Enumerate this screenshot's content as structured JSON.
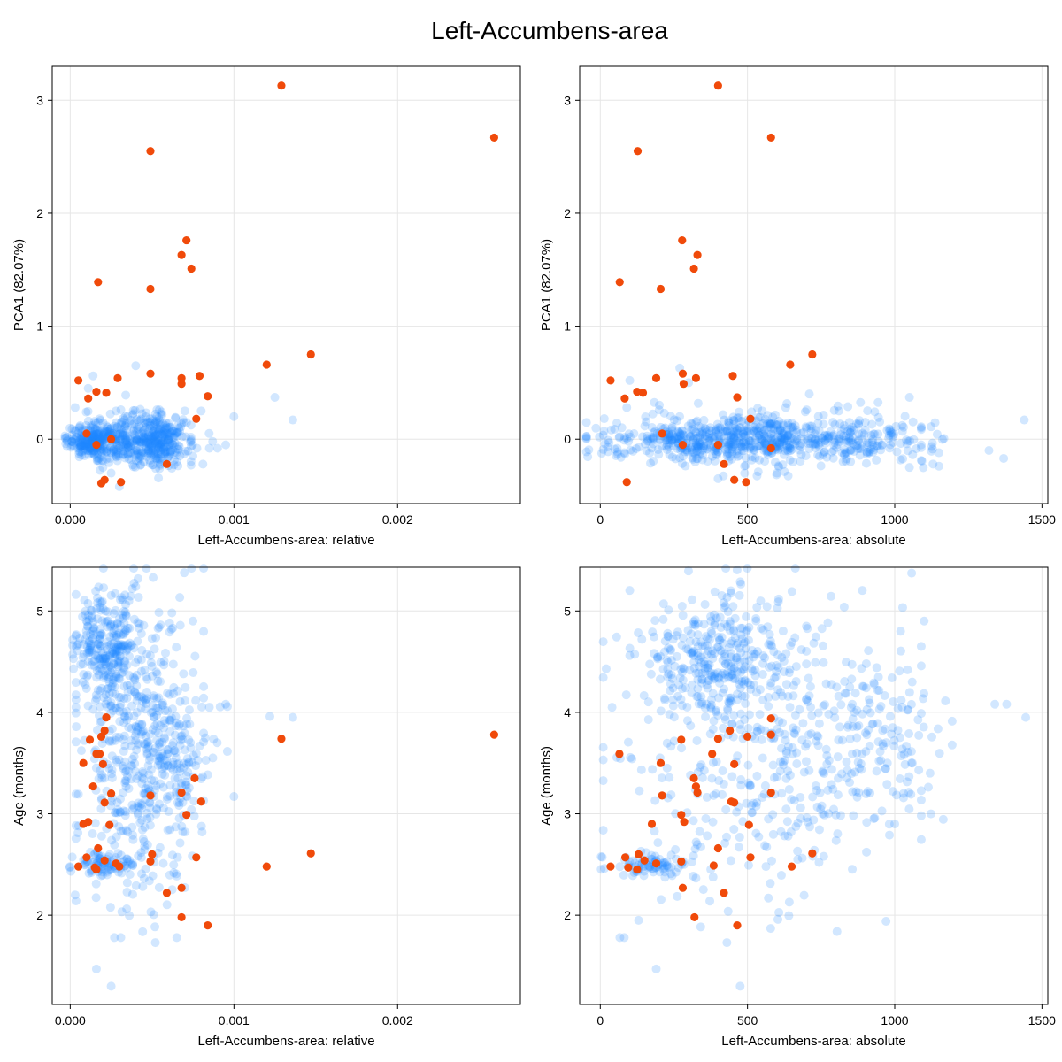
{
  "title": "Left-Accumbens-area",
  "colors": {
    "background_points": "#1e88ff",
    "highlight_points": "#f04a0a"
  },
  "chart_data": [
    {
      "type": "scatter",
      "xlabel": "Left-Accumbens-area: relative",
      "ylabel": "PCA1 (82.07%)",
      "xlim": [
        -0.00011,
        0.00275
      ],
      "ylim": [
        -0.57,
        3.3
      ],
      "xticks": [
        0,
        0.001,
        0.002
      ],
      "xtick_labels": [
        "0.000",
        "0.001",
        "0.002"
      ],
      "yticks": [
        0,
        1,
        2,
        3
      ],
      "ytick_labels": [
        "0",
        "1",
        "2",
        "3"
      ],
      "grid": true,
      "background_series": {
        "count": 900,
        "dense_points": [
          [
            1e-05,
            -0.02
          ],
          [
            3e-05,
            0.28
          ],
          [
            8e-05,
            -0.1
          ],
          [
            0.00011,
            0.45
          ],
          [
            0.00014,
            0.56
          ],
          [
            0.00018,
            0.18
          ],
          [
            0.0002,
            -0.25
          ],
          [
            0.00025,
            -0.3
          ],
          [
            0.00028,
            0.25
          ],
          [
            0.0003,
            -0.42
          ],
          [
            0.00035,
            0.2
          ],
          [
            0.0004,
            0.65
          ],
          [
            0.00045,
            -0.2
          ],
          [
            0.0005,
            0.18
          ],
          [
            0.00055,
            -0.22
          ],
          [
            0.0006,
            0.1
          ],
          [
            0.00065,
            -0.2
          ],
          [
            0.0007,
            0.25
          ],
          [
            0.00075,
            -0.15
          ],
          [
            0.0008,
            0.25
          ],
          [
            0.00085,
            -0.08
          ],
          [
            0.0009,
            -0.08
          ],
          [
            0.00095,
            -0.05
          ],
          [
            0.001,
            0.2
          ],
          [
            0.00125,
            0.37
          ],
          [
            0.00136,
            0.17
          ]
        ],
        "ranges": [
          {
            "x": [
              0.0,
              0.00032
            ],
            "y": [
              -0.15,
              0.12
            ],
            "n": 300
          },
          {
            "x": [
              0.00032,
              0.0007
            ],
            "y": [
              -0.2,
              0.2
            ],
            "n": 300
          },
          {
            "x": [
              0.0001,
              0.0008
            ],
            "y": [
              -0.3,
              0.3
            ],
            "n": 100
          }
        ]
      },
      "highlight_series": [
        [
          0.00129,
          3.13
        ],
        [
          0.00259,
          2.67
        ],
        [
          0.00049,
          2.55
        ],
        [
          0.00071,
          1.76
        ],
        [
          0.00068,
          1.63
        ],
        [
          0.00074,
          1.51
        ],
        [
          0.00017,
          1.39
        ],
        [
          0.00049,
          1.33
        ],
        [
          0.00147,
          0.75
        ],
        [
          0.0012,
          0.66
        ],
        [
          0.00049,
          0.58
        ],
        [
          0.00079,
          0.56
        ],
        [
          0.00068,
          0.54
        ],
        [
          0.00029,
          0.54
        ],
        [
          5e-05,
          0.52
        ],
        [
          0.00068,
          0.49
        ],
        [
          0.00016,
          0.42
        ],
        [
          0.00022,
          0.41
        ],
        [
          0.00011,
          0.36
        ],
        [
          0.00084,
          0.38
        ],
        [
          0.00077,
          0.18
        ],
        [
          0.00059,
          -0.22
        ],
        [
          0.00021,
          -0.36
        ],
        [
          0.00031,
          -0.38
        ],
        [
          0.00019,
          -0.39
        ],
        [
          0.0001,
          0.05
        ],
        [
          0.00016,
          -0.05
        ],
        [
          0.00025,
          0.0
        ]
      ]
    },
    {
      "type": "scatter",
      "xlabel": "Left-Accumbens-area: absolute",
      "ylabel": "PCA1 (82.07%)",
      "xlim": [
        -70,
        1520
      ],
      "ylim": [
        -0.57,
        3.3
      ],
      "xticks": [
        0,
        500,
        1000,
        1500
      ],
      "xtick_labels": [
        "0",
        "500",
        "1000",
        "1500"
      ],
      "yticks": [
        0,
        1,
        2,
        3
      ],
      "ytick_labels": [
        "0",
        "1",
        "2",
        "3"
      ],
      "grid": true,
      "background_series": {
        "count": 900,
        "dense_points": [
          [
            1050,
            0.37
          ],
          [
            1440,
            0.17
          ],
          [
            1370,
            -0.17
          ],
          [
            1320,
            -0.1
          ],
          [
            1130,
            -0.22
          ],
          [
            1150,
            -0.12
          ],
          [
            810,
            0.25
          ],
          [
            710,
            0.4
          ],
          [
            270,
            0.63
          ],
          [
            300,
            0.5
          ],
          [
            100,
            0.52
          ],
          [
            90,
            0.28
          ],
          [
            30,
            -0.03
          ],
          [
            550,
            0.25
          ],
          [
            900,
            0.15
          ],
          [
            1050,
            -0.25
          ],
          [
            850,
            -0.2
          ],
          [
            600,
            -0.3
          ],
          [
            400,
            -0.35
          ]
        ],
        "ranges": [
          {
            "x": [
              30,
              800
            ],
            "y": [
              -0.15,
              0.15
            ],
            "n": 400
          },
          {
            "x": [
              100,
              1000
            ],
            "y": [
              -0.25,
              0.25
            ],
            "n": 300
          },
          {
            "x": [
              700,
              1150
            ],
            "y": [
              -0.2,
              0.15
            ],
            "n": 100
          }
        ]
      },
      "highlight_series": [
        [
          400,
          3.13
        ],
        [
          580,
          2.67
        ],
        [
          127,
          2.55
        ],
        [
          278,
          1.76
        ],
        [
          330,
          1.63
        ],
        [
          318,
          1.51
        ],
        [
          66,
          1.39
        ],
        [
          205,
          1.33
        ],
        [
          720,
          0.75
        ],
        [
          645,
          0.66
        ],
        [
          280,
          0.58
        ],
        [
          450,
          0.56
        ],
        [
          283,
          0.49
        ],
        [
          325,
          0.54
        ],
        [
          35,
          0.52
        ],
        [
          190,
          0.54
        ],
        [
          125,
          0.42
        ],
        [
          145,
          0.41
        ],
        [
          83,
          0.36
        ],
        [
          465,
          0.37
        ],
        [
          510,
          0.18
        ],
        [
          420,
          -0.22
        ],
        [
          455,
          -0.36
        ],
        [
          495,
          -0.38
        ],
        [
          90,
          -0.38
        ],
        [
          210,
          0.05
        ],
        [
          580,
          -0.08
        ],
        [
          280,
          -0.05
        ],
        [
          400,
          -0.05
        ]
      ]
    },
    {
      "type": "scatter",
      "xlabel": "Left-Accumbens-area: relative",
      "ylabel": "Age (months)",
      "xlim": [
        -0.00011,
        0.00275
      ],
      "ylim": [
        1.12,
        5.43
      ],
      "xticks": [
        0,
        0.001,
        0.002
      ],
      "xtick_labels": [
        "0.000",
        "0.001",
        "0.002"
      ],
      "yticks": [
        2,
        3,
        4,
        5
      ],
      "ytick_labels": [
        "2",
        "3",
        "4",
        "5"
      ],
      "grid": true,
      "background_series": {
        "count": 900,
        "dense_points": [
          [
            0.00016,
            1.47
          ],
          [
            0.00025,
            1.3
          ],
          [
            0.00052,
            1.73
          ],
          [
            2e-05,
            4.43
          ],
          [
            3e-05,
            2.2
          ],
          [
            0.00095,
            4.08
          ],
          [
            0.001,
            3.17
          ],
          [
            0.00122,
            3.96
          ],
          [
            0.00136,
            3.95
          ],
          [
            0.00085,
            4.05
          ],
          [
            0.00075,
            4.9
          ],
          [
            0.00038,
            5.22
          ],
          [
            0.0004,
            5.24
          ]
        ],
        "ranges": [
          {
            "x": [
              5e-05,
              0.0004
            ],
            "y": [
              4.2,
              5.1
            ],
            "n": 250
          },
          {
            "x": [
              0.0001,
              0.00075
            ],
            "y": [
              2.2,
              5.0
            ],
            "n": 450
          },
          {
            "x": [
              3e-05,
              0.00035
            ],
            "y": [
              2.4,
              2.6
            ],
            "n": 80
          },
          {
            "x": [
              0.0003,
              0.0009
            ],
            "y": [
              3.0,
              4.2
            ],
            "n": 120
          }
        ]
      },
      "highlight_series": [
        [
          0.00259,
          3.78
        ],
        [
          0.00129,
          3.74
        ],
        [
          0.00147,
          2.61
        ],
        [
          0.0012,
          2.48
        ],
        [
          0.00022,
          3.95
        ],
        [
          0.00019,
          3.76
        ],
        [
          0.00021,
          3.82
        ],
        [
          0.00012,
          3.73
        ],
        [
          0.00016,
          3.59
        ],
        [
          0.00018,
          3.59
        ],
        [
          8e-05,
          3.5
        ],
        [
          0.0002,
          3.49
        ],
        [
          0.00076,
          3.35
        ],
        [
          0.00014,
          3.27
        ],
        [
          0.00068,
          3.21
        ],
        [
          0.00025,
          3.2
        ],
        [
          0.00049,
          3.18
        ],
        [
          0.0008,
          3.12
        ],
        [
          0.00021,
          3.11
        ],
        [
          0.00071,
          2.99
        ],
        [
          0.00011,
          2.92
        ],
        [
          8e-05,
          2.9
        ],
        [
          0.00024,
          2.89
        ],
        [
          0.00017,
          2.66
        ],
        [
          0.0005,
          2.6
        ],
        [
          0.0001,
          2.57
        ],
        [
          0.00077,
          2.57
        ],
        [
          0.00021,
          2.54
        ],
        [
          0.00049,
          2.53
        ],
        [
          0.00028,
          2.51
        ],
        [
          0.0003,
          2.48
        ],
        [
          5e-05,
          2.48
        ],
        [
          0.00015,
          2.47
        ],
        [
          0.00016,
          2.45
        ],
        [
          0.00068,
          2.27
        ],
        [
          0.00059,
          2.22
        ],
        [
          0.00068,
          1.98
        ],
        [
          0.00084,
          1.9
        ]
      ]
    },
    {
      "type": "scatter",
      "xlabel": "Left-Accumbens-area: absolute",
      "ylabel": "Age (months)",
      "xlim": [
        -70,
        1520
      ],
      "ylim": [
        1.12,
        5.43
      ],
      "xticks": [
        0,
        500,
        1000,
        1500
      ],
      "xtick_labels": [
        "0",
        "500",
        "1000",
        "1500"
      ],
      "yticks": [
        2,
        3,
        4,
        5
      ],
      "ytick_labels": [
        "2",
        "3",
        "4",
        "5"
      ],
      "grid": true,
      "background_series": {
        "count": 900,
        "dense_points": [
          [
            190,
            1.47
          ],
          [
            475,
            1.3
          ],
          [
            430,
            1.73
          ],
          [
            130,
            1.95
          ],
          [
            20,
            4.43
          ],
          [
            40,
            4.05
          ],
          [
            1340,
            4.08
          ],
          [
            1380,
            4.08
          ],
          [
            1445,
            3.95
          ],
          [
            1120,
            3.4
          ],
          [
            1060,
            3.5
          ],
          [
            1030,
            3.2
          ],
          [
            1000,
            2.9
          ],
          [
            1100,
            4.9
          ],
          [
            1020,
            4.8
          ]
        ],
        "ranges": [
          {
            "x": [
              150,
              650
            ],
            "y": [
              4.0,
              5.1
            ],
            "n": 300
          },
          {
            "x": [
              100,
              1000
            ],
            "y": [
              2.2,
              5.0
            ],
            "n": 400
          },
          {
            "x": [
              700,
              1150
            ],
            "y": [
              3.0,
              4.4
            ],
            "n": 120
          },
          {
            "x": [
              30,
              300
            ],
            "y": [
              2.4,
              2.6
            ],
            "n": 80
          }
        ]
      },
      "highlight_series": [
        [
          580,
          3.94
        ],
        [
          440,
          3.82
        ],
        [
          580,
          3.78
        ],
        [
          500,
          3.76
        ],
        [
          400,
          3.74
        ],
        [
          275,
          3.73
        ],
        [
          380,
          3.59
        ],
        [
          65,
          3.59
        ],
        [
          205,
          3.5
        ],
        [
          455,
          3.49
        ],
        [
          318,
          3.35
        ],
        [
          325,
          3.27
        ],
        [
          330,
          3.21
        ],
        [
          580,
          3.21
        ],
        [
          210,
          3.18
        ],
        [
          445,
          3.12
        ],
        [
          455,
          3.11
        ],
        [
          275,
          2.99
        ],
        [
          285,
          2.92
        ],
        [
          505,
          2.89
        ],
        [
          175,
          2.9
        ],
        [
          400,
          2.66
        ],
        [
          130,
          2.6
        ],
        [
          720,
          2.61
        ],
        [
          510,
          2.57
        ],
        [
          85,
          2.57
        ],
        [
          150,
          2.54
        ],
        [
          275,
          2.53
        ],
        [
          190,
          2.51
        ],
        [
          385,
          2.49
        ],
        [
          650,
          2.48
        ],
        [
          35,
          2.48
        ],
        [
          95,
          2.47
        ],
        [
          125,
          2.45
        ],
        [
          280,
          2.27
        ],
        [
          420,
          2.22
        ],
        [
          320,
          1.98
        ],
        [
          465,
          1.9
        ]
      ]
    }
  ]
}
